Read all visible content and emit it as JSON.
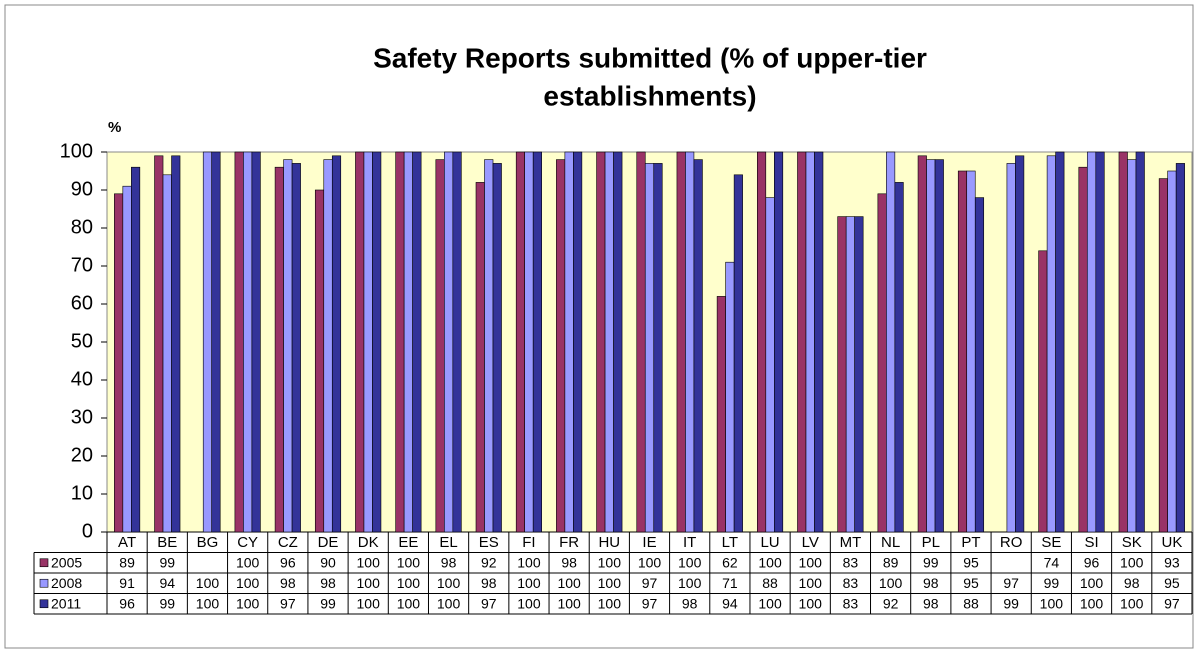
{
  "chart_data": {
    "type": "bar",
    "title": [
      "Safety Reports submitted (% of upper-tier",
      "establishments)"
    ],
    "ylabel": "%",
    "categories": [
      "AT",
      "BE",
      "BG",
      "CY",
      "CZ",
      "DE",
      "DK",
      "EE",
      "EL",
      "ES",
      "FI",
      "FR",
      "HU",
      "IE",
      "IT",
      "LT",
      "LU",
      "LV",
      "MT",
      "NL",
      "PL",
      "PT",
      "RO",
      "SE",
      "SI",
      "SK",
      "UK"
    ],
    "series": [
      {
        "name": "2005",
        "color": "#993366",
        "values": [
          89,
          99,
          null,
          100,
          96,
          90,
          100,
          100,
          98,
          92,
          100,
          98,
          100,
          100,
          100,
          62,
          100,
          100,
          83,
          89,
          99,
          95,
          null,
          74,
          96,
          100,
          93
        ]
      },
      {
        "name": "2008",
        "color": "#9999ff",
        "values": [
          91,
          94,
          100,
          100,
          98,
          98,
          100,
          100,
          100,
          98,
          100,
          100,
          100,
          97,
          100,
          71,
          88,
          100,
          83,
          100,
          98,
          95,
          97,
          99,
          100,
          98,
          95
        ]
      },
      {
        "name": "2011",
        "color": "#333399",
        "values": [
          96,
          99,
          100,
          100,
          97,
          99,
          100,
          100,
          100,
          97,
          100,
          100,
          100,
          97,
          98,
          94,
          100,
          100,
          83,
          92,
          98,
          88,
          99,
          100,
          100,
          100,
          97
        ]
      }
    ],
    "ylim": [
      0,
      100
    ],
    "yticks": [
      0,
      10,
      20,
      30,
      40,
      50,
      60,
      70,
      80,
      90,
      100
    ],
    "grid": false,
    "plot_background": "#ffffcc"
  }
}
